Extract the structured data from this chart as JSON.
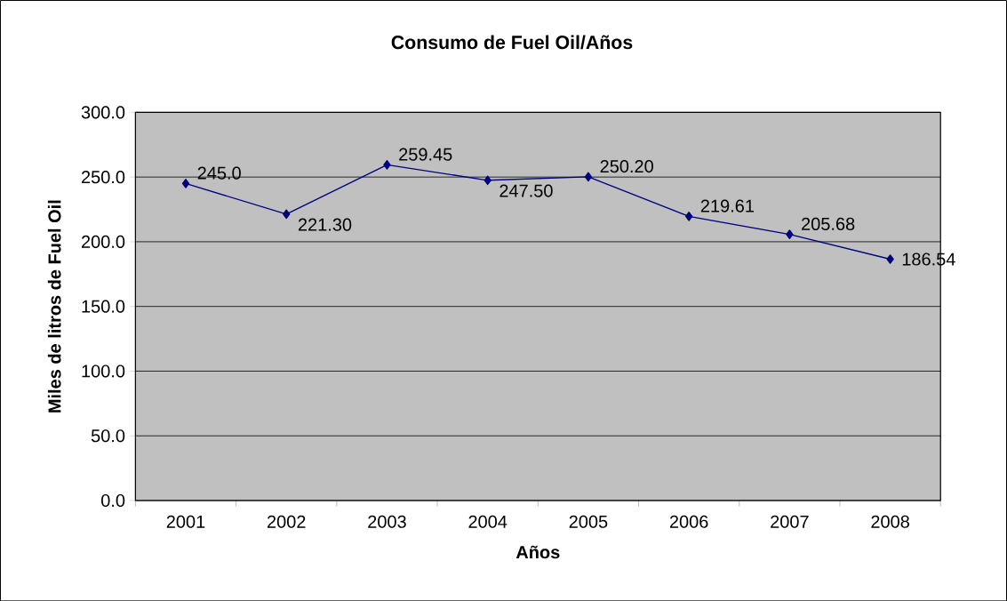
{
  "chart_data": {
    "type": "line",
    "title": "Consumo de Fuel Oil/Años",
    "xlabel": "Años",
    "ylabel": "Miles de litros de Fuel Oil",
    "categories": [
      "2001",
      "2002",
      "2003",
      "2004",
      "2005",
      "2006",
      "2007",
      "2008"
    ],
    "series": [
      {
        "color": "#000080",
        "values": [
          245.0,
          221.3,
          259.45,
          247.5,
          250.2,
          219.61,
          205.68,
          186.54
        ],
        "value_labels": [
          "245.0",
          "221.30",
          "259.45",
          "247.50",
          "250.20",
          "219.61",
          "205.68",
          "186.54"
        ]
      }
    ],
    "ylim": [
      0,
      300
    ],
    "yticks": [
      {
        "value": 0,
        "label": "0.0"
      },
      {
        "value": 50,
        "label": "50.0"
      },
      {
        "value": 100,
        "label": "100.0"
      },
      {
        "value": 150,
        "label": "150.0"
      },
      {
        "value": 200,
        "label": "200.0"
      },
      {
        "value": 250,
        "label": "250.0"
      },
      {
        "value": 300,
        "label": "300.0"
      }
    ],
    "grid": "y",
    "marker": "diamond",
    "line_style": "solid"
  }
}
